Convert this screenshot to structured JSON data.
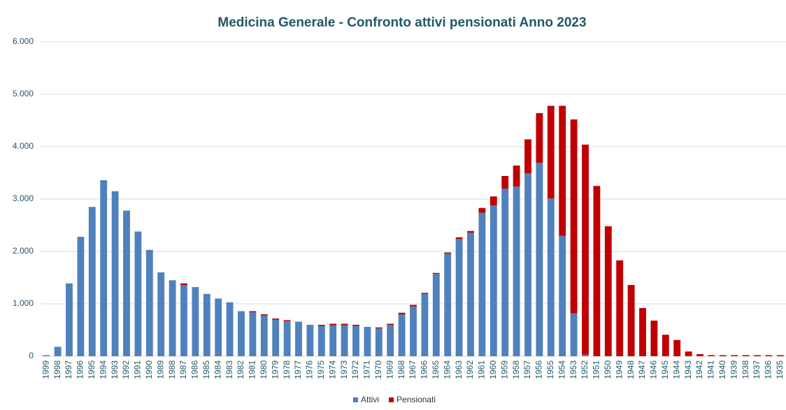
{
  "chart_data": {
    "type": "stacked_bar",
    "title": "Medicina Generale - Confronto attivi pensionati Anno 2023",
    "categories": [
      "1999",
      "1998",
      "1997",
      "1996",
      "1995",
      "1994",
      "1993",
      "1992",
      "1991",
      "1990",
      "1989",
      "1988",
      "1987",
      "1986",
      "1985",
      "1984",
      "1983",
      "1982",
      "1981",
      "1980",
      "1979",
      "1978",
      "1977",
      "1976",
      "1975",
      "1974",
      "1973",
      "1972",
      "1971",
      "1970",
      "1969",
      "1968",
      "1967",
      "1966",
      "1965",
      "1964",
      "1963",
      "1962",
      "1961",
      "1960",
      "1959",
      "1958",
      "1957",
      "1956",
      "1955",
      "1954",
      "1953",
      "1952",
      "1951",
      "1950",
      "1949",
      "1948",
      "1947",
      "1946",
      "1945",
      "1944",
      "1943",
      "1942",
      "1941",
      "1940",
      "1939",
      "1938",
      "1937",
      "1936",
      "1935"
    ],
    "series": [
      {
        "name": "Attivi",
        "color": "#4f81bd",
        "values": [
          20,
          180,
          1390,
          2280,
          2850,
          3360,
          3150,
          2780,
          2380,
          2030,
          1600,
          1450,
          1360,
          1320,
          1190,
          1100,
          1030,
          860,
          840,
          780,
          700,
          670,
          660,
          600,
          580,
          590,
          590,
          580,
          560,
          530,
          600,
          800,
          950,
          1190,
          1570,
          1960,
          2240,
          2360,
          2740,
          2880,
          3200,
          3240,
          3490,
          3690,
          3010,
          2300,
          820,
          30,
          0,
          0,
          0,
          0,
          0,
          0,
          0,
          0,
          0,
          0,
          0,
          0,
          0,
          0,
          0,
          0,
          0
        ]
      },
      {
        "name": "Pensionati",
        "color": "#c00000",
        "values": [
          0,
          0,
          0,
          0,
          0,
          0,
          0,
          0,
          0,
          0,
          0,
          0,
          30,
          0,
          0,
          0,
          0,
          0,
          20,
          20,
          20,
          20,
          0,
          0,
          20,
          30,
          30,
          20,
          0,
          20,
          20,
          30,
          30,
          20,
          20,
          20,
          30,
          30,
          90,
          170,
          240,
          400,
          650,
          950,
          1770,
          2480,
          3700,
          4010,
          3250,
          2480,
          1830,
          1360,
          920,
          680,
          410,
          310,
          90,
          40,
          20,
          20,
          20,
          20,
          20,
          20,
          20
        ]
      }
    ],
    "ylim": [
      0,
      6000
    ],
    "yticks": [
      0,
      {
        "value": 1000,
        "label": "1.000"
      },
      {
        "value": 2000,
        "label": "2.000"
      },
      {
        "value": 3000,
        "label": "3.000"
      },
      {
        "value": 4000,
        "label": "4.000"
      },
      {
        "value": 5000,
        "label": "5.000"
      },
      {
        "value": 6000,
        "label": "6.000"
      }
    ],
    "grid": true,
    "legend": "bottom"
  }
}
